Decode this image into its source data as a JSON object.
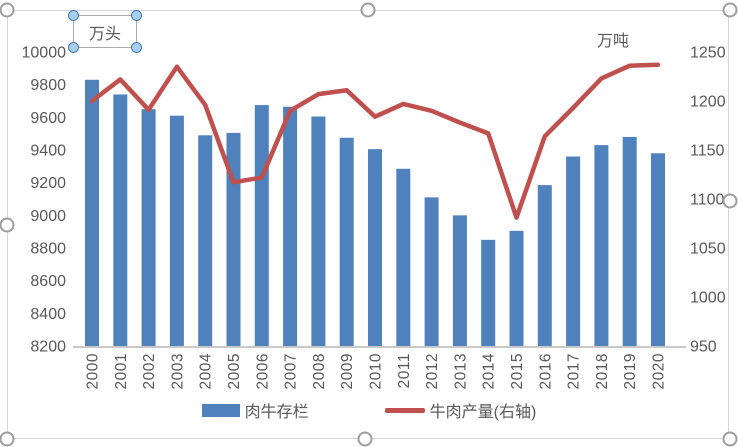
{
  "units": {
    "left": "万头",
    "right": "万吨"
  },
  "legend": [
    {
      "label": "肉牛存栏",
      "type": "bar"
    },
    {
      "label": "牛肉产量(右轴)",
      "type": "line"
    }
  ],
  "colors": {
    "bar": "#4f81bd",
    "line": "#c0504d",
    "axis_text": "#595959",
    "axis_line": "#c9c9c9",
    "chart_border": "#d6d6d6"
  },
  "chart_data": {
    "type": "bar+line combo",
    "categories": [
      2000,
      2001,
      2002,
      2003,
      2004,
      2005,
      2006,
      2007,
      2008,
      2009,
      2010,
      2011,
      2012,
      2013,
      2014,
      2015,
      2016,
      2017,
      2018,
      2019,
      2020
    ],
    "series": [
      {
        "name": "肉牛存栏",
        "type": "bar",
        "axis": "left",
        "unit": "万头",
        "values": [
          9830,
          9740,
          9650,
          9610,
          9490,
          9505,
          9675,
          9665,
          9605,
          9475,
          9405,
          9285,
          9110,
          9000,
          8850,
          8905,
          9185,
          9360,
          9430,
          9480,
          9380
        ]
      },
      {
        "name": "牛肉产量(右轴)",
        "type": "line",
        "axis": "right",
        "unit": "万吨",
        "values": [
          1200,
          1222,
          1191,
          1235,
          1196,
          1117,
          1122,
          1190,
          1207,
          1211,
          1184,
          1197,
          1190,
          1178,
          1167,
          1081,
          1164,
          1193,
          1223,
          1236,
          1237
        ]
      }
    ],
    "left_axis": {
      "label": "万头",
      "min": 8200,
      "max": 10000,
      "step": 200
    },
    "right_axis": {
      "label": "万吨",
      "min": 950,
      "max": 1250,
      "step": 50
    },
    "legend_position": "bottom",
    "grid": false,
    "x_tick_rotation": -90
  }
}
